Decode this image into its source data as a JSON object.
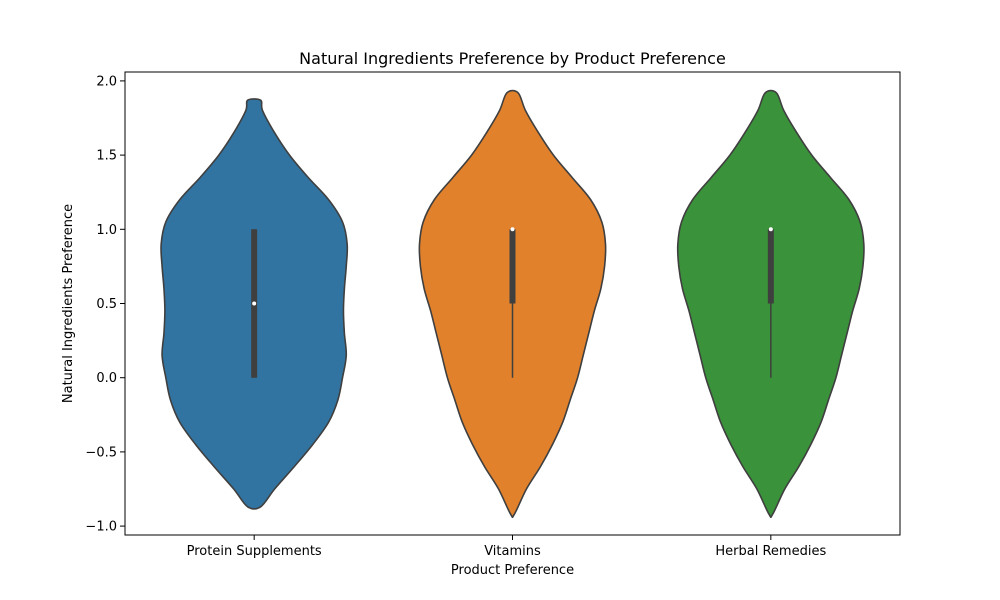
{
  "chart_data": {
    "type": "violin",
    "title": "Natural Ingredients Preference by Product Preference",
    "xlabel": "Product Preference",
    "ylabel": "Natural Ingredients Preference",
    "ylim": [
      -1.06,
      2.06
    ],
    "yticks": [
      -1.0,
      -0.5,
      0.0,
      0.5,
      1.0,
      1.5,
      2.0
    ],
    "ytick_labels": [
      "−1.0",
      "−0.5",
      "0.0",
      "0.5",
      "1.0",
      "1.5",
      "2.0"
    ],
    "grid": false,
    "categories": [
      "Protein Supplements",
      "Vitamins",
      "Herbal Remedies"
    ],
    "series": [
      {
        "category": "Protein Supplements",
        "color": "#3274a1",
        "min_extent": -0.87,
        "max_extent": 1.87,
        "density_profile": [
          [
            -0.87,
            0.07
          ],
          [
            -0.75,
            0.22
          ],
          [
            -0.6,
            0.43
          ],
          [
            -0.45,
            0.63
          ],
          [
            -0.3,
            0.8
          ],
          [
            -0.15,
            0.9
          ],
          [
            0.0,
            0.95
          ],
          [
            0.15,
            0.99
          ],
          [
            0.3,
            0.97
          ],
          [
            0.45,
            0.96
          ],
          [
            0.6,
            0.97
          ],
          [
            0.75,
            0.99
          ],
          [
            0.9,
            1.0
          ],
          [
            1.05,
            0.95
          ],
          [
            1.2,
            0.8
          ],
          [
            1.35,
            0.58
          ],
          [
            1.5,
            0.38
          ],
          [
            1.65,
            0.22
          ],
          [
            1.8,
            0.09
          ],
          [
            1.87,
            0.07
          ]
        ],
        "quartiles": [
          0.0,
          1.0
        ],
        "whiskers": [
          0.0,
          1.0
        ],
        "median": 0.5
      },
      {
        "category": "Vitamins",
        "color": "#e1812c",
        "min_extent": -0.92,
        "max_extent": 1.92,
        "density_profile": [
          [
            -0.92,
            0.02
          ],
          [
            -0.75,
            0.15
          ],
          [
            -0.6,
            0.3
          ],
          [
            -0.45,
            0.43
          ],
          [
            -0.3,
            0.54
          ],
          [
            -0.15,
            0.62
          ],
          [
            0.0,
            0.7
          ],
          [
            0.15,
            0.76
          ],
          [
            0.3,
            0.82
          ],
          [
            0.45,
            0.88
          ],
          [
            0.6,
            0.95
          ],
          [
            0.75,
            0.99
          ],
          [
            0.9,
            1.0
          ],
          [
            1.05,
            0.96
          ],
          [
            1.2,
            0.84
          ],
          [
            1.35,
            0.64
          ],
          [
            1.5,
            0.44
          ],
          [
            1.65,
            0.28
          ],
          [
            1.8,
            0.14
          ],
          [
            1.92,
            0.06
          ]
        ],
        "quartiles": [
          0.5,
          1.0
        ],
        "whiskers": [
          0.0,
          1.0
        ],
        "median": 1.0
      },
      {
        "category": "Herbal Remedies",
        "color": "#3a923a",
        "min_extent": -0.92,
        "max_extent": 1.92,
        "density_profile": [
          [
            -0.92,
            0.02
          ],
          [
            -0.75,
            0.15
          ],
          [
            -0.6,
            0.3
          ],
          [
            -0.45,
            0.43
          ],
          [
            -0.3,
            0.54
          ],
          [
            -0.15,
            0.62
          ],
          [
            0.0,
            0.7
          ],
          [
            0.15,
            0.76
          ],
          [
            0.3,
            0.82
          ],
          [
            0.45,
            0.88
          ],
          [
            0.6,
            0.95
          ],
          [
            0.75,
            0.99
          ],
          [
            0.9,
            1.0
          ],
          [
            1.05,
            0.96
          ],
          [
            1.2,
            0.84
          ],
          [
            1.35,
            0.64
          ],
          [
            1.5,
            0.44
          ],
          [
            1.65,
            0.28
          ],
          [
            1.8,
            0.14
          ],
          [
            1.92,
            0.06
          ]
        ],
        "quartiles": [
          0.5,
          1.0
        ],
        "whiskers": [
          0.0,
          1.0
        ],
        "median": 1.0
      }
    ]
  }
}
